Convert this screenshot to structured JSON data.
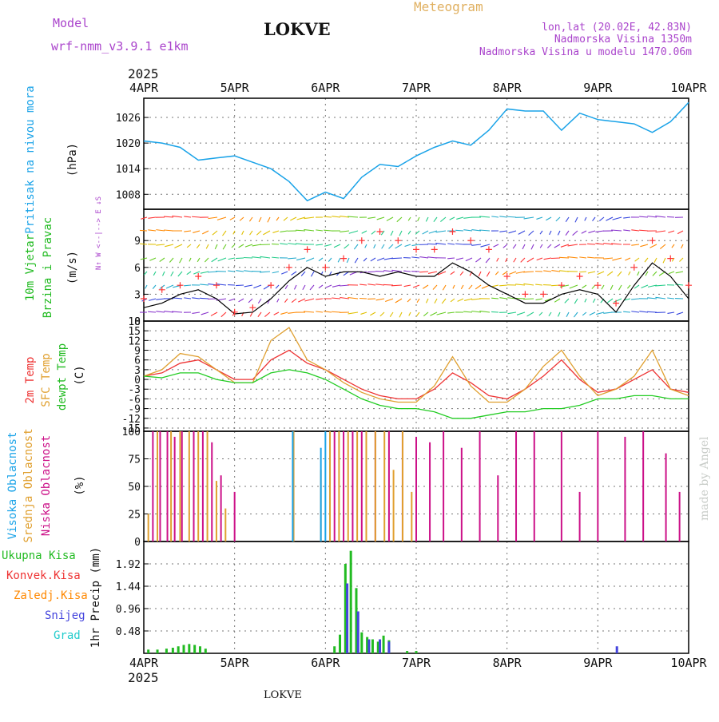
{
  "header": {
    "model_label": "Model",
    "model_name": "wrf-nmm_v3.9.1  e1km",
    "station": "LOKVE",
    "product": "Meteogram",
    "coords": "lon,lat (20.02E, 42.83N)",
    "elevation": "Nadmorska Visina 1350m",
    "model_elevation": "Nadmorska Visina u modelu 1470.06m",
    "year_top": "2025",
    "year_bottom": "2025",
    "footer_station": "LOKVE",
    "credit": "made by Angel"
  },
  "colors": {
    "pressure": "#1aa3e8",
    "wind_label": "#22bb22",
    "wind_speed_red": "#ff3333",
    "wind_speed_black": "#000000",
    "temp2m": "#ee3333",
    "sfc_temp": "#e0a030",
    "dewpoint": "#22cc22",
    "cloud_high": "#1aa3e8",
    "cloud_mid": "#e0a030",
    "cloud_low": "#cc1188",
    "precip_total": "#22bb22",
    "precip_conv": "#ee3333",
    "precip_frozen": "#ff8800",
    "precip_snow": "#4444dd",
    "precip_hail": "#22cccc",
    "header_purple": "#aa44cc",
    "header_orange": "#e0b060"
  },
  "chart_data": [
    {
      "type": "line",
      "panel": "pressure",
      "ylabel": [
        "Pritisak na nivou mora",
        "(hPa)"
      ],
      "x_ticks": [
        "4APR",
        "5APR",
        "6APR",
        "7APR",
        "8APR",
        "9APR",
        "10APR"
      ],
      "yticks": [
        1008,
        1014,
        1020,
        1026
      ],
      "ylim": [
        1004.5,
        1030.5
      ],
      "grid": true,
      "x_days": [
        0,
        0.2,
        0.4,
        0.6,
        0.8,
        1.0,
        1.2,
        1.4,
        1.6,
        1.8,
        2.0,
        2.2,
        2.4,
        2.6,
        2.8,
        3.0,
        3.2,
        3.4,
        3.6,
        3.8,
        4.0,
        4.2,
        4.4,
        4.6,
        4.8,
        5.0,
        5.2,
        5.4,
        5.6,
        5.8,
        6.0
      ],
      "series": [
        {
          "color_key": "pressure",
          "values": [
            1020.5,
            1020,
            1019,
            1016,
            1016.5,
            1017,
            1015.5,
            1014,
            1011,
            1006.5,
            1008.5,
            1007,
            1012,
            1015,
            1014.5,
            1017,
            1019,
            1020.5,
            1019.5,
            1023,
            1028,
            1027.5,
            1027.5,
            1023,
            1027,
            1025.5,
            1025,
            1024.5,
            1022.5,
            1025,
            1029.5
          ]
        }
      ]
    },
    {
      "type": "line",
      "panel": "wind",
      "ylabel": [
        "10m Vjetar",
        "Brzina i Pravac",
        "(m/s)"
      ],
      "legend_compass": "N↑ W <--|--> E ↓S",
      "yticks": [
        0,
        3,
        6,
        9
      ],
      "ylim": [
        0,
        12.5
      ],
      "grid": true,
      "x_days": [
        0,
        0.2,
        0.4,
        0.6,
        0.8,
        1.0,
        1.2,
        1.4,
        1.6,
        1.8,
        2.0,
        2.2,
        2.4,
        2.6,
        2.8,
        3.0,
        3.2,
        3.4,
        3.6,
        3.8,
        4.0,
        4.2,
        4.4,
        4.6,
        4.8,
        5.0,
        5.2,
        5.4,
        5.6,
        5.8,
        6.0
      ],
      "series": [
        {
          "name": "gust",
          "color_key": "wind_speed_red",
          "marker": "+",
          "values": [
            2.5,
            3.5,
            4,
            5,
            4,
            1,
            1.5,
            4,
            6,
            8,
            6,
            7,
            9,
            10,
            9,
            8,
            8,
            10,
            9,
            8,
            5,
            3,
            3,
            4,
            5,
            4,
            2,
            6,
            9,
            7,
            4
          ]
        },
        {
          "name": "speed",
          "color_key": "wind_speed_black",
          "values": [
            1.5,
            2,
            3,
            3.5,
            2.5,
            0.8,
            1,
            2.5,
            4.5,
            6,
            5,
            5.5,
            5.5,
            5,
            5.5,
            5,
            5,
            6.5,
            5.5,
            4,
            3,
            2,
            2,
            3,
            3.5,
            3,
            1,
            4,
            6.5,
            5,
            2.5
          ]
        }
      ]
    },
    {
      "type": "line",
      "panel": "temperature",
      "ylabel": [
        "2m Temp",
        "SFC Temp",
        "dewpt Temp",
        "(C)"
      ],
      "yticks": [
        -15,
        -12,
        -9,
        -6,
        -3,
        0,
        3,
        6,
        9,
        12,
        15,
        18
      ],
      "ylim": [
        -16,
        18
      ],
      "grid": true,
      "x_days": [
        0,
        0.2,
        0.4,
        0.6,
        0.8,
        1.0,
        1.2,
        1.4,
        1.6,
        1.8,
        2.0,
        2.2,
        2.4,
        2.6,
        2.8,
        3.0,
        3.2,
        3.4,
        3.6,
        3.8,
        4.0,
        4.2,
        4.4,
        4.6,
        4.8,
        5.0,
        5.2,
        5.4,
        5.6,
        5.8,
        6.0
      ],
      "series": [
        {
          "name": "2m Temp",
          "color_key": "temp2m",
          "values": [
            1,
            2,
            5,
            6,
            3,
            0,
            0,
            6,
            9,
            5,
            3,
            0,
            -3,
            -5,
            -6,
            -6,
            -3,
            2,
            -1,
            -5,
            -6,
            -3,
            1,
            6,
            0,
            -4,
            -3,
            0,
            3,
            -3,
            -4
          ]
        },
        {
          "name": "SFC Temp",
          "color_key": "sfc_temp",
          "values": [
            1,
            3,
            8,
            7,
            3,
            -1,
            -1,
            12,
            16,
            6,
            3,
            -1,
            -4,
            -6,
            -7,
            -7,
            -2,
            7,
            -2,
            -7,
            -7,
            -3,
            4,
            9,
            1,
            -5,
            -3,
            1,
            9,
            -3,
            -5
          ]
        },
        {
          "name": "dewpt Temp",
          "color_key": "dewpoint",
          "values": [
            1,
            0.5,
            2,
            2,
            0,
            -1,
            -1,
            2,
            3,
            2,
            0,
            -3,
            -6,
            -8,
            -9,
            -9,
            -10,
            -12,
            -12,
            -11,
            -10,
            -10,
            -9,
            -9,
            -8,
            -6,
            -6,
            -5,
            -5,
            -6,
            -6
          ]
        }
      ]
    },
    {
      "type": "bar",
      "panel": "clouds",
      "ylabel": [
        "Visoka Oblacnost",
        "Srednja Oblacnost",
        "Niska Oblacnost",
        "(%)"
      ],
      "yticks": [
        0,
        25,
        50,
        75,
        100
      ],
      "ylim": [
        0,
        100
      ],
      "grid": true,
      "series": [
        {
          "name": "Niska",
          "color_key": "cloud_low",
          "x_days": [
            0.1,
            0.18,
            0.26,
            0.34,
            0.42,
            0.55,
            0.65,
            0.75,
            0.85,
            1.0,
            2.1,
            2.2,
            2.3,
            2.4,
            2.55,
            2.7,
            2.85,
            3.0,
            3.15,
            3.3,
            3.5,
            3.7,
            3.9,
            4.1,
            4.3,
            4.6,
            4.8,
            5.0,
            5.3,
            5.5,
            5.75,
            5.9
          ],
          "values": [
            100,
            100,
            100,
            95,
            100,
            100,
            100,
            90,
            60,
            45,
            100,
            100,
            100,
            100,
            100,
            100,
            100,
            95,
            90,
            100,
            85,
            100,
            60,
            100,
            100,
            100,
            45,
            100,
            95,
            100,
            80,
            45
          ]
        },
        {
          "name": "Srednja",
          "color_key": "cloud_mid",
          "x_days": [
            0.05,
            0.15,
            0.3,
            0.4,
            0.5,
            0.6,
            0.7,
            0.8,
            0.9,
            1.05,
            1.65,
            1.95,
            2.05,
            2.15,
            2.25,
            2.35,
            2.45,
            2.55,
            2.65,
            2.75,
            2.85,
            2.95
          ],
          "values": [
            25,
            100,
            100,
            100,
            100,
            100,
            100,
            55,
            30,
            0,
            100,
            65,
            100,
            100,
            100,
            100,
            100,
            100,
            100,
            65,
            100,
            45
          ]
        },
        {
          "name": "Visoka",
          "color_key": "cloud_high",
          "x_days": [
            1.64,
            1.95,
            2.0
          ],
          "values": [
            100,
            85,
            100
          ]
        }
      ]
    },
    {
      "type": "bar",
      "panel": "precip",
      "ylabel": [
        "1hr Precip (mm)"
      ],
      "legend": [
        "Ukupna Kisa",
        "Konvek.Kisa",
        "Zaledj.Kisa",
        "Snijeg",
        "Grad"
      ],
      "yticks": [
        0.48,
        0.96,
        1.44,
        1.92
      ],
      "ylim": [
        0,
        2.4
      ],
      "grid": true,
      "series": [
        {
          "name": "Ukupna Kisa",
          "color_key": "precip_total",
          "x_days": [
            0.05,
            0.15,
            0.25,
            0.32,
            0.38,
            0.44,
            0.5,
            0.56,
            0.62,
            0.68,
            2.1,
            2.16,
            2.22,
            2.28,
            2.34,
            2.4,
            2.46,
            2.52,
            2.58,
            2.64,
            2.7,
            2.9,
            3.0
          ],
          "values": [
            0.08,
            0.08,
            0.1,
            0.12,
            0.15,
            0.18,
            0.2,
            0.18,
            0.15,
            0.1,
            0.15,
            0.4,
            1.92,
            2.2,
            1.4,
            0.45,
            0.35,
            0.3,
            0.25,
            0.38,
            0.28,
            0.05,
            0.05
          ]
        },
        {
          "name": "Snijeg",
          "color_key": "precip_snow",
          "x_days": [
            2.24,
            2.36,
            2.48,
            2.6,
            2.7,
            5.21
          ],
          "values": [
            1.5,
            0.9,
            0.3,
            0.3,
            0.25,
            0.15
          ]
        }
      ]
    }
  ]
}
